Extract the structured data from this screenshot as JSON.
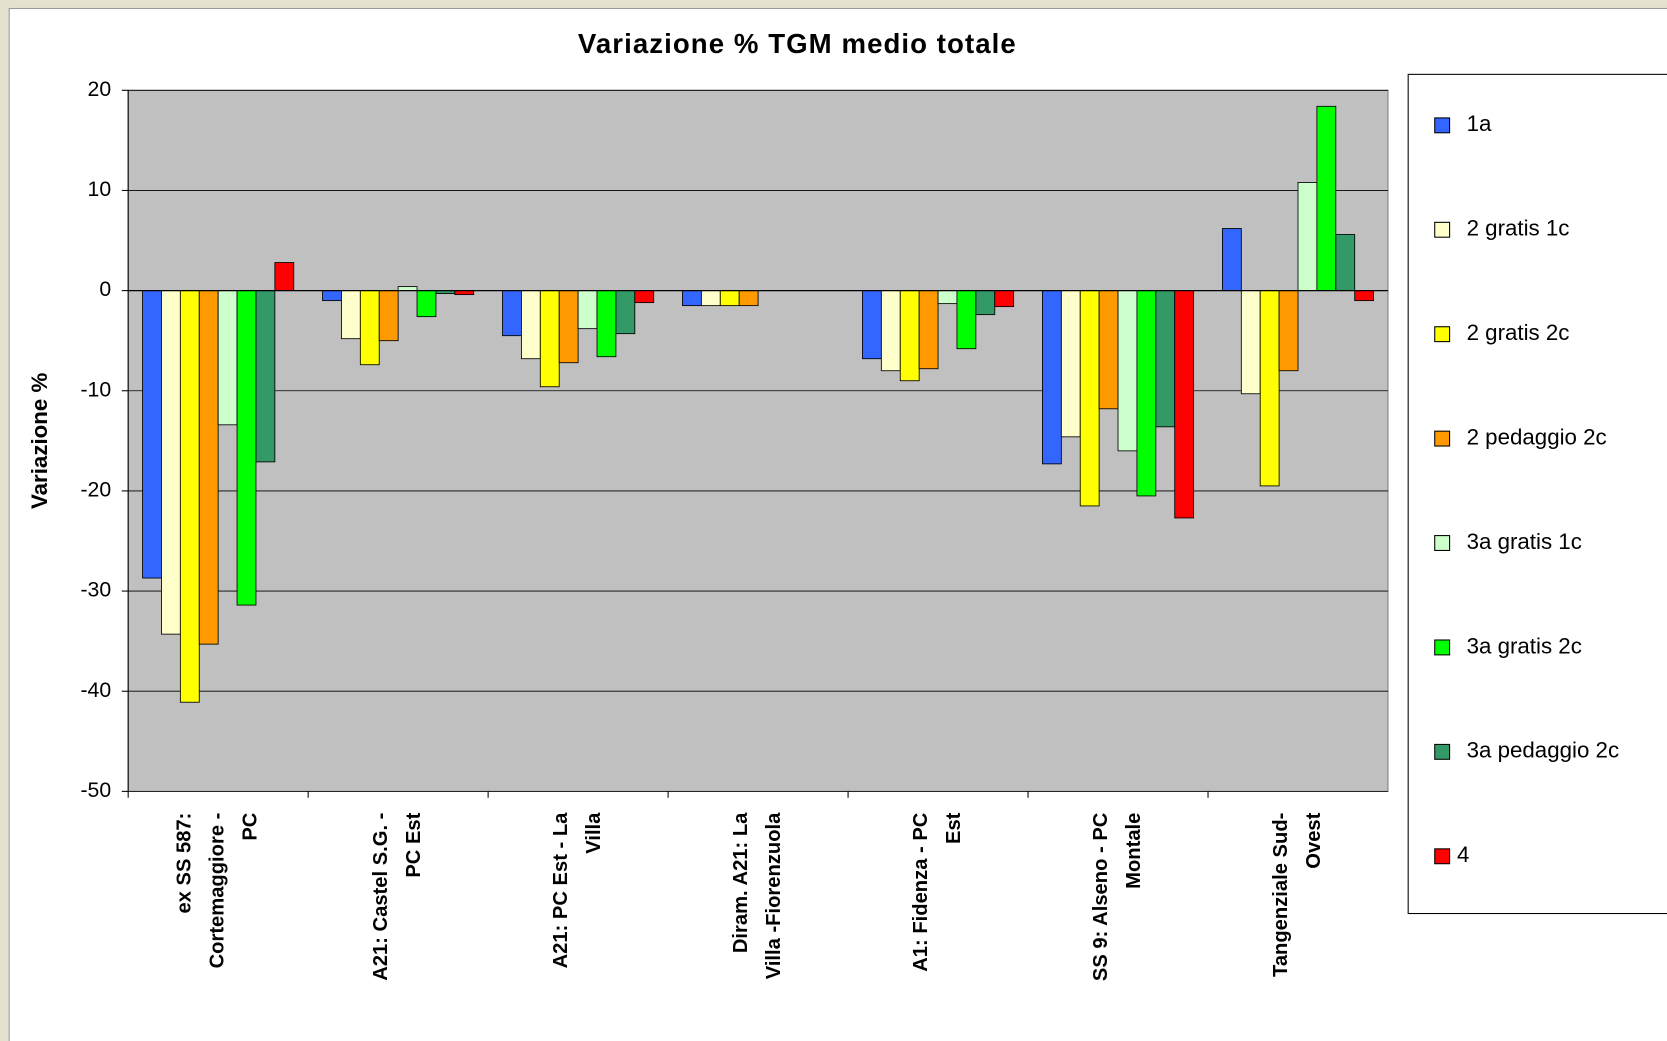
{
  "chart_data": {
    "type": "bar",
    "title": "Variazione % TGM medio totale",
    "y_label": "Variazione %",
    "categories": [
      [
        "ex SS 587:",
        "Cortemaggiore -",
        "PC"
      ],
      [
        "A21: Castel S.G. -",
        "PC Est"
      ],
      [
        "A21: PC Est - La",
        "Villa"
      ],
      [
        "Diram. A21: La",
        "Villa -Fiorenzuola"
      ],
      [
        "A1: Fidenza - PC",
        "Est"
      ],
      [
        "SS 9: Alseno - PC",
        "Montale"
      ],
      [
        "Tangenziale Sud-",
        "Ovest"
      ]
    ],
    "series": [
      {
        "name": "1a",
        "color": "#3366ff",
        "values": [
          -28.7,
          -1.0,
          -4.5,
          -1.5,
          -6.8,
          -17.3,
          6.2
        ]
      },
      {
        "name": "2 gratis 1c",
        "color": "#ffffcc",
        "values": [
          -34.3,
          -4.8,
          -6.8,
          -1.5,
          -8.0,
          -14.6,
          -10.3
        ]
      },
      {
        "name": "2 gratis 2c",
        "color": "#ffff00",
        "values": [
          -41.1,
          -7.4,
          -9.6,
          -1.5,
          -9.0,
          -21.5,
          -19.5
        ]
      },
      {
        "name": "2 pedaggio 2c",
        "color": "#ff9900",
        "values": [
          -35.3,
          -5.0,
          -7.2,
          -1.5,
          -7.8,
          -11.8,
          -8.0
        ]
      },
      {
        "name": "3a gratis 1c",
        "color": "#ccffcc",
        "values": [
          -13.4,
          0.4,
          -3.8,
          null,
          -1.3,
          -16.0,
          10.8
        ]
      },
      {
        "name": "3a gratis 2c",
        "color": "#00ff00",
        "values": [
          -31.4,
          -2.6,
          -6.6,
          null,
          -5.8,
          -20.5,
          18.4
        ]
      },
      {
        "name": "3a pedaggio 2c",
        "color": "#339966",
        "values": [
          -17.1,
          -0.3,
          -4.3,
          null,
          -2.4,
          -13.6,
          5.6
        ]
      },
      {
        "name": "4",
        "color": "#ff0000",
        "values": [
          2.8,
          -0.4,
          -1.2,
          null,
          -1.6,
          -22.7,
          -1.0
        ]
      }
    ],
    "ylim": [
      -50,
      20
    ],
    "yticks": [
      -50,
      -40,
      -30,
      -20,
      -10,
      0,
      10,
      20
    ],
    "grid": true,
    "legend": "right"
  }
}
